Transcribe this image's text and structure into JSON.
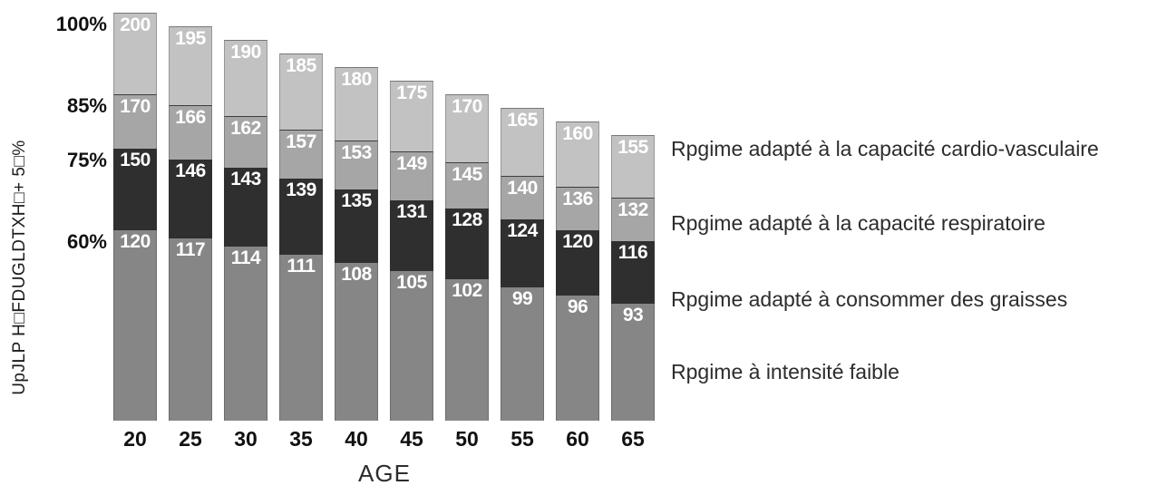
{
  "chart_data": {
    "type": "bar",
    "stacked": true,
    "categories": [
      "20",
      "25",
      "30",
      "35",
      "40",
      "45",
      "50",
      "55",
      "60",
      "65"
    ],
    "xlabel": "AGE",
    "ylabel": "UpJLP H□FDUGLDTXH□+ 5□%",
    "ytick_labels": [
      "100%",
      "85%",
      "75%",
      "60%"
    ],
    "baseline_value": 50,
    "grid": false,
    "legend_position": "right",
    "series": [
      {
        "name": "Rpgime adapté à la capacité cardio-vasculaire",
        "tick": "100%",
        "color": "#c2c2c2",
        "values": [
          200,
          195,
          190,
          185,
          180,
          175,
          170,
          165,
          160,
          155
        ]
      },
      {
        "name": "Rpgime adapté à la capacité respiratoire",
        "tick": "85%",
        "color": "#a6a6a6",
        "values": [
          170,
          166,
          162,
          157,
          153,
          149,
          145,
          140,
          136,
          132
        ]
      },
      {
        "name": "Rpgime adapté à consommer des graisses",
        "tick": "75%",
        "color": "#2f2f2f",
        "values": [
          150,
          146,
          143,
          139,
          135,
          131,
          128,
          124,
          120,
          116
        ]
      },
      {
        "name": "Rpgime à intensité faible",
        "tick": "60%",
        "color": "#868686",
        "values": [
          120,
          117,
          114,
          111,
          108,
          105,
          102,
          99,
          96,
          93
        ]
      }
    ]
  }
}
